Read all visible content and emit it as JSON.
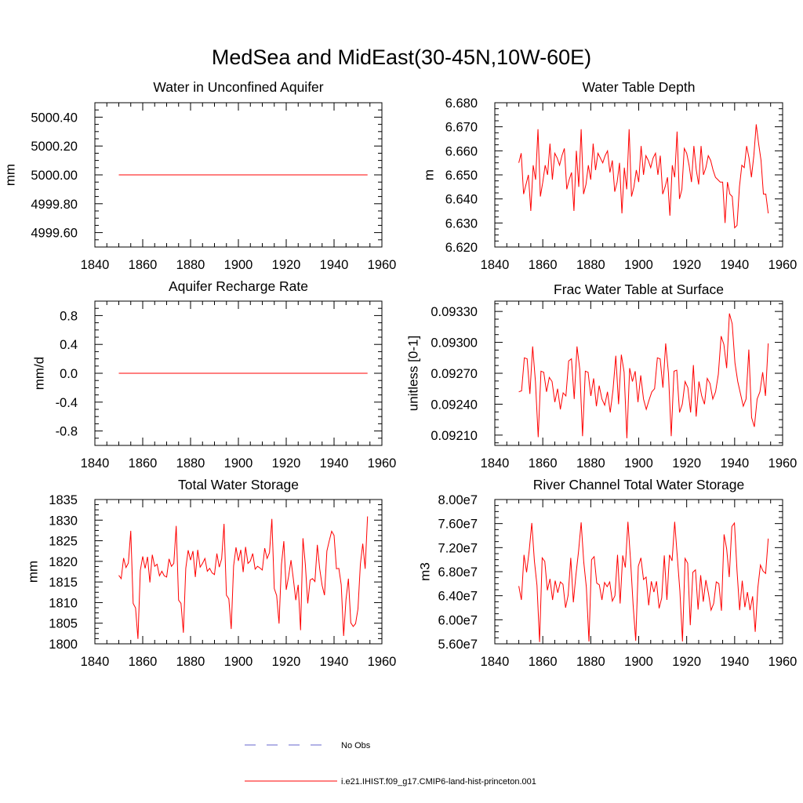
{
  "title": "MedSea and MidEast(30-45N,10W-60E)",
  "colors": {
    "model": "#ff0000",
    "obs": "#6666cc"
  },
  "legend": {
    "obs_label": "No Obs",
    "model_label": "i.e21.IHIST.f09_g17.CMIP6-land-hist-princeton.001"
  },
  "chart_data": [
    {
      "type": "line",
      "title": "Water in Unconfined Aquifer",
      "ylabel": "mm",
      "xlim": [
        1840,
        1960
      ],
      "ylim": [
        4999.5,
        5000.5
      ],
      "xticks": [
        "1840",
        "1860",
        "1880",
        "1900",
        "1920",
        "1940",
        "1960"
      ],
      "yticks": [
        "4999.60",
        "4999.80",
        "5000.00",
        "5000.20",
        "5000.40"
      ],
      "x_start": 1850,
      "series": [
        {
          "values": [
            5000,
            5000,
            5000,
            5000,
            5000,
            5000,
            5000,
            5000,
            5000,
            5000,
            5000,
            5000,
            5000,
            5000,
            5000,
            5000,
            5000,
            5000,
            5000,
            5000,
            5000,
            5000,
            5000,
            5000,
            5000,
            5000,
            5000,
            5000,
            5000,
            5000,
            5000,
            5000,
            5000,
            5000,
            5000,
            5000,
            5000,
            5000,
            5000,
            5000,
            5000,
            5000,
            5000,
            5000,
            5000,
            5000,
            5000,
            5000,
            5000,
            5000,
            5000,
            5000,
            5000,
            5000,
            5000,
            5000,
            5000,
            5000,
            5000,
            5000,
            5000,
            5000,
            5000,
            5000,
            5000,
            5000,
            5000,
            5000,
            5000,
            5000,
            5000,
            5000,
            5000,
            5000,
            5000,
            5000,
            5000,
            5000,
            5000,
            5000,
            5000,
            5000,
            5000,
            5000,
            5000,
            5000,
            5000,
            5000,
            5000,
            5000,
            5000,
            5000,
            5000,
            5000,
            5000,
            5000,
            5000,
            5000,
            5000,
            5000,
            5000,
            5000,
            5000,
            5000,
            5000
          ]
        }
      ]
    },
    {
      "type": "line",
      "title": "Water Table Depth",
      "ylabel": "m",
      "xlim": [
        1840,
        1960
      ],
      "ylim": [
        6.62,
        6.68
      ],
      "xticks": [
        "1840",
        "1860",
        "1880",
        "1900",
        "1920",
        "1940",
        "1960"
      ],
      "yticks": [
        "6.620",
        "6.630",
        "6.640",
        "6.650",
        "6.660",
        "6.670",
        "6.680"
      ],
      "x_start": 1850,
      "series": [
        {
          "values": [
            6.655,
            6.659,
            6.642,
            6.646,
            6.65,
            6.635,
            6.654,
            6.648,
            6.669,
            6.641,
            6.647,
            6.654,
            6.65,
            6.663,
            6.648,
            6.659,
            6.657,
            6.654,
            6.658,
            6.661,
            6.644,
            6.648,
            6.651,
            6.635,
            6.66,
            6.645,
            6.669,
            6.642,
            6.646,
            6.654,
            6.648,
            6.663,
            6.652,
            6.659,
            6.657,
            6.655,
            6.658,
            6.66,
            6.651,
            6.656,
            6.643,
            6.647,
            6.655,
            6.634,
            6.653,
            6.644,
            6.669,
            6.641,
            6.645,
            6.652,
            6.647,
            6.662,
            6.65,
            6.658,
            6.656,
            6.653,
            6.657,
            6.659,
            6.65,
            6.658,
            6.642,
            6.645,
            6.649,
            6.633,
            6.654,
            6.649,
            6.668,
            6.64,
            6.644,
            6.661,
            6.659,
            6.654,
            6.647,
            6.662,
            6.652,
            6.646,
            6.662,
            6.65,
            6.653,
            6.658,
            6.656,
            6.652,
            6.649,
            6.648,
            6.647,
            6.647,
            6.63,
            6.647,
            6.642,
            6.641,
            6.628,
            6.629,
            6.645,
            6.654,
            6.653,
            6.662,
            6.657,
            6.649,
            6.658,
            6.671,
            6.663,
            6.656,
            6.642,
            6.642,
            6.634
          ]
        }
      ]
    },
    {
      "type": "line",
      "title": "Aquifer Recharge Rate",
      "ylabel": "mm/d",
      "xlim": [
        1840,
        1960
      ],
      "ylim": [
        -1.0,
        1.0
      ],
      "xticks": [
        "1840",
        "1860",
        "1880",
        "1900",
        "1920",
        "1940",
        "1960"
      ],
      "yticks": [
        "-0.8",
        "-0.4",
        "0.0",
        "0.4",
        "0.8"
      ],
      "x_start": 1850,
      "series": [
        {
          "values": [
            0,
            0,
            0,
            0,
            0,
            0,
            0,
            0,
            0,
            0,
            0,
            0,
            0,
            0,
            0,
            0,
            0,
            0,
            0,
            0,
            0,
            0,
            0,
            0,
            0,
            0,
            0,
            0,
            0,
            0,
            0,
            0,
            0,
            0,
            0,
            0,
            0,
            0,
            0,
            0,
            0,
            0,
            0,
            0,
            0,
            0,
            0,
            0,
            0,
            0,
            0,
            0,
            0,
            0,
            0,
            0,
            0,
            0,
            0,
            0,
            0,
            0,
            0,
            0,
            0,
            0,
            0,
            0,
            0,
            0,
            0,
            0,
            0,
            0,
            0,
            0,
            0,
            0,
            0,
            0,
            0,
            0,
            0,
            0,
            0,
            0,
            0,
            0,
            0,
            0,
            0,
            0,
            0,
            0,
            0,
            0,
            0,
            0,
            0,
            0,
            0,
            0,
            0,
            0,
            0
          ]
        }
      ]
    },
    {
      "type": "line",
      "title": "Frac Water Table at Surface",
      "ylabel": "unitless [0-1]",
      "xlim": [
        1840,
        1960
      ],
      "ylim": [
        0.092,
        0.0934
      ],
      "xticks": [
        "1840",
        "1860",
        "1880",
        "1900",
        "1920",
        "1940",
        "1960"
      ],
      "yticks": [
        "0.09210",
        "0.09240",
        "0.09270",
        "0.09300",
        "0.09330"
      ],
      "x_start": 1850,
      "series": [
        {
          "values": [
            0.09252,
            0.09253,
            0.09285,
            0.09284,
            0.0925,
            0.09296,
            0.09262,
            0.09208,
            0.09272,
            0.09271,
            0.09252,
            0.09266,
            0.09262,
            0.09242,
            0.09255,
            0.09235,
            0.09251,
            0.09248,
            0.09282,
            0.09284,
            0.09245,
            0.09296,
            0.09274,
            0.09209,
            0.09272,
            0.09271,
            0.09248,
            0.09265,
            0.09238,
            0.09258,
            0.09245,
            0.09239,
            0.09252,
            0.09232,
            0.09254,
            0.09287,
            0.0924,
            0.09288,
            0.09271,
            0.09207,
            0.09275,
            0.09262,
            0.09272,
            0.09242,
            0.09268,
            0.09245,
            0.09235,
            0.09244,
            0.09252,
            0.09255,
            0.09285,
            0.09284,
            0.09256,
            0.09299,
            0.0927,
            0.09209,
            0.09272,
            0.09273,
            0.09232,
            0.0924,
            0.09262,
            0.09256,
            0.09232,
            0.09278,
            0.09228,
            0.09262,
            0.09248,
            0.0924,
            0.09265,
            0.0926,
            0.09245,
            0.09252,
            0.09269,
            0.09306,
            0.09298,
            0.09275,
            0.09328,
            0.09318,
            0.0928,
            0.09262,
            0.0925,
            0.09238,
            0.09245,
            0.09293,
            0.09227,
            0.09218,
            0.09245,
            0.09252,
            0.09271,
            0.09248,
            0.09299
          ]
        }
      ]
    },
    {
      "type": "line",
      "title": "Total Water Storage",
      "ylabel": "mm",
      "xlim": [
        1840,
        1960
      ],
      "ylim": [
        1800,
        1835
      ],
      "xticks": [
        "1840",
        "1860",
        "1880",
        "1900",
        "1920",
        "1940",
        "1960"
      ],
      "yticks": [
        "1800",
        "1805",
        "1810",
        "1815",
        "1820",
        "1825",
        "1830",
        "1835"
      ],
      "x_start": 1850,
      "series": [
        {
          "values": [
            1816.6,
            1815.8,
            1820.8,
            1818.5,
            1819.6,
            1827.4,
            1809.8,
            1808.7,
            1801.2,
            1817.8,
            1821.2,
            1818.3,
            1821.1,
            1814.9,
            1821.6,
            1818.8,
            1819.3,
            1816.5,
            1817.6,
            1816.5,
            1816.2,
            1820.6,
            1818.8,
            1819.5,
            1828.6,
            1810.6,
            1809.8,
            1802.7,
            1818.3,
            1822.7,
            1820.3,
            1822.5,
            1816.2,
            1822.8,
            1818.6,
            1819.5,
            1820.7,
            1817.6,
            1818.3,
            1817.2,
            1816.8,
            1821.9,
            1818.6,
            1820.6,
            1829.1,
            1811.8,
            1810.9,
            1803.6,
            1818.9,
            1823.4,
            1820.1,
            1822.8,
            1817.4,
            1823.5,
            1819.5,
            1820.1,
            1821.9,
            1818.1,
            1818.8,
            1818.4,
            1817.9,
            1823.2,
            1820.7,
            1822.1,
            1830.3,
            1813.4,
            1811.7,
            1804.9,
            1819.2,
            1824.9,
            1813.1,
            1816.4,
            1820.3,
            1815.6,
            1810.6,
            1814.3,
            1803.3,
            1825.6,
            1819.2,
            1809.8,
            1815.5,
            1815.8,
            1815.1,
            1824.0,
            1818.2,
            1814.2,
            1811.8,
            1822.5,
            1825.0,
            1827.3,
            1826.3,
            1818.2,
            1818.3,
            1814.3,
            1801.9,
            1810.8,
            1815.8,
            1805.1,
            1804.2,
            1804.9,
            1808.5,
            1819.3,
            1824.3,
            1818.2,
            1830.9
          ]
        }
      ]
    },
    {
      "type": "line",
      "title": "River Channel Total Water Storage",
      "ylabel": "m3",
      "xlim": [
        1840,
        1960
      ],
      "ylim": [
        56000000,
        80000000
      ],
      "xticks": [
        "1840",
        "1860",
        "1880",
        "1900",
        "1920",
        "1940",
        "1960"
      ],
      "yticks": [
        "5.60e7",
        "6.00e7",
        "6.40e7",
        "6.80e7",
        "7.20e7",
        "7.60e7",
        "8.00e7"
      ],
      "x_start": 1850,
      "series": [
        {
          "values": [
            65600000,
            63300000,
            70800000,
            67900000,
            71500000,
            76100000,
            69800000,
            65700000,
            56300000,
            70300000,
            69700000,
            64900000,
            66800000,
            63300000,
            66500000,
            64500000,
            66300000,
            65900000,
            62000000,
            64100000,
            70300000,
            62900000,
            67500000,
            71400000,
            76200000,
            69600000,
            65400000,
            56400000,
            70000000,
            70500000,
            66100000,
            65800000,
            63300000,
            66200000,
            65500000,
            66300000,
            63100000,
            64000000,
            70800000,
            62700000,
            70700000,
            68700000,
            76300000,
            70000000,
            62500000,
            56500000,
            68900000,
            70300000,
            66700000,
            67100000,
            62400000,
            66400000,
            64600000,
            66400000,
            61900000,
            63600000,
            70700000,
            63300000,
            70800000,
            69800000,
            76300000,
            70500000,
            64800000,
            56400000,
            70200000,
            69400000,
            59100000,
            67900000,
            68300000,
            61700000,
            67400000,
            63000000,
            66600000,
            64400000,
            61600000,
            62700000,
            66300000,
            66000000,
            61500000,
            74200000,
            71800000,
            67100000,
            75500000,
            76100000,
            68100000,
            61600000,
            66500000,
            62100000,
            64600000,
            61600000,
            63900000,
            58000000,
            65300000,
            69100000,
            68100000,
            67700000,
            73500000
          ]
        }
      ]
    }
  ]
}
